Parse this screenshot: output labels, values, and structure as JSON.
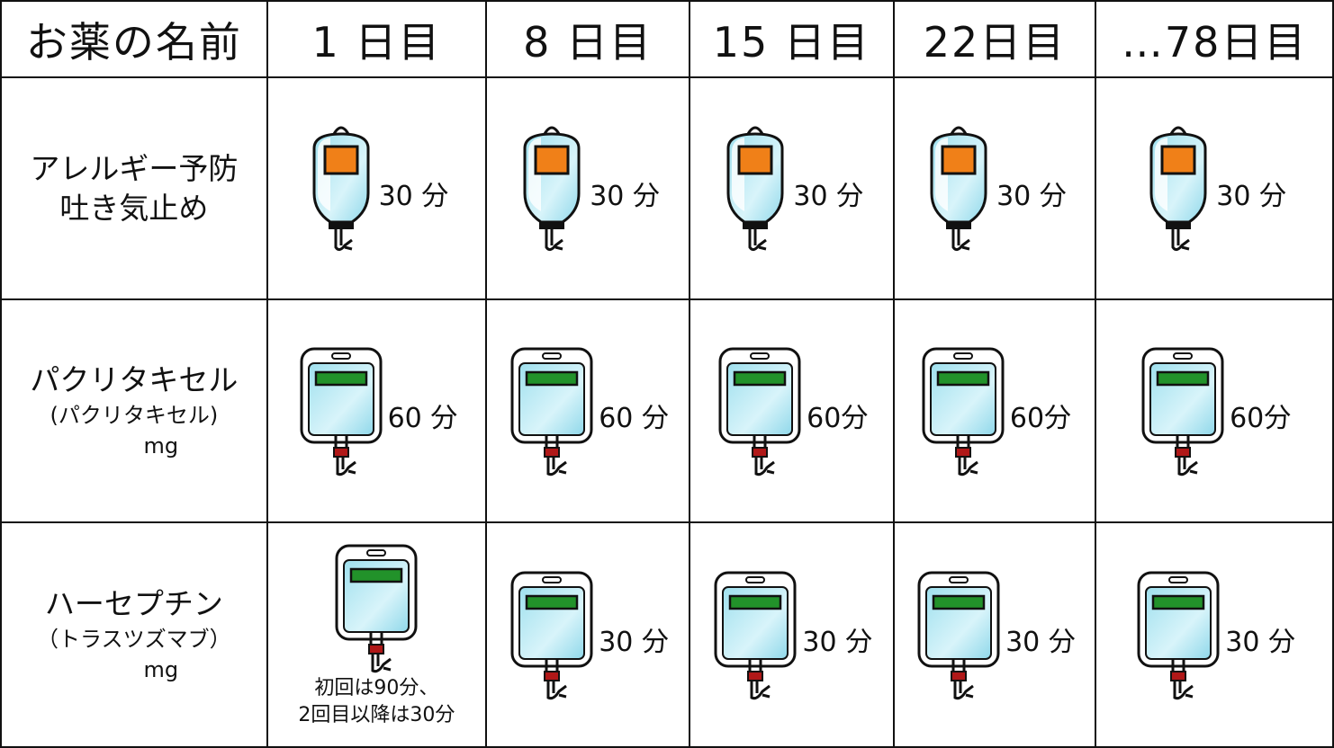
{
  "table": {
    "header": [
      "お薬の名前",
      "1 日目",
      "8 日目",
      "15 日目",
      "22日目",
      "…78日目"
    ],
    "rows": [
      {
        "name": [
          "アレルギー予防",
          "吐き気止め"
        ],
        "cells": [
          "30 分",
          "30 分",
          "30 分",
          "30 分",
          "30 分"
        ]
      },
      {
        "name": [
          "パクリタキセル",
          "(パクリタキセル)",
          "mg"
        ],
        "cells": [
          "60 分",
          "60 分",
          "60分",
          "60分",
          "60分"
        ]
      },
      {
        "name": [
          "ハーセプチン",
          "（トラスツズマブ）",
          "mg"
        ],
        "cells": [
          [
            "初回は90分、",
            "2回目以降は30分"
          ],
          "30 分",
          "30 分",
          "30 分",
          "30 分"
        ]
      }
    ]
  }
}
